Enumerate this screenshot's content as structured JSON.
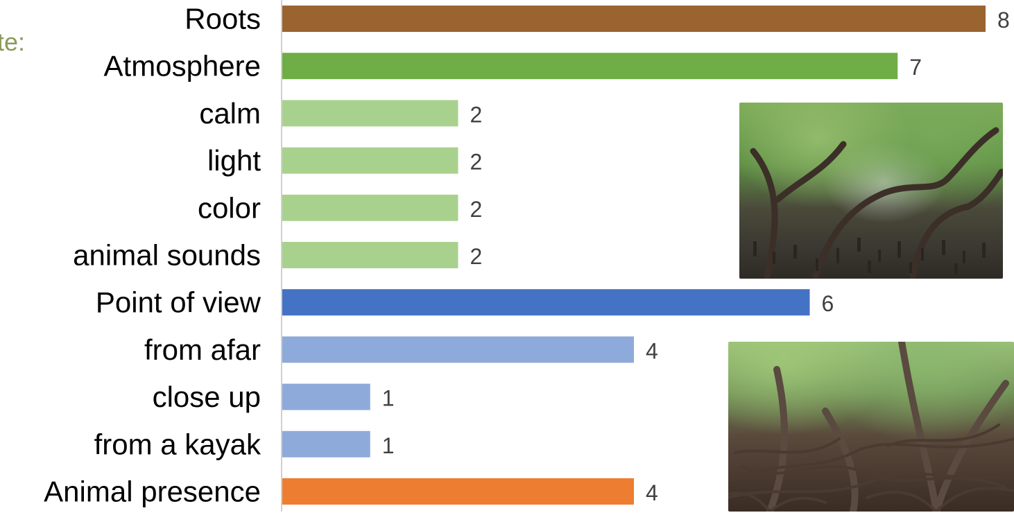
{
  "cut_label": "tte:",
  "chart_data": {
    "type": "bar",
    "orientation": "horizontal",
    "categories": [
      "Roots",
      "Atmosphere",
      "calm",
      "light",
      "color",
      "animal sounds",
      "Point of view",
      "from afar",
      "close up",
      "from a kayak",
      "Animal presence"
    ],
    "values": [
      8,
      7,
      2,
      2,
      2,
      2,
      6,
      4,
      1,
      1,
      4
    ],
    "colors": [
      "#9a6430",
      "#6fad46",
      "#a9d18e",
      "#a9d18e",
      "#a9d18e",
      "#a9d18e",
      "#4472c4",
      "#8eaadb",
      "#8eaadb",
      "#8eaadb",
      "#ed7d31"
    ],
    "xlim": [
      0,
      8
    ],
    "grid": false,
    "data_labels": true
  },
  "photos": [
    {
      "name": "mangrove-photo-1",
      "depicts": "mangrove-forest-icon"
    },
    {
      "name": "mangrove-photo-2",
      "depicts": "mangrove-roots-icon"
    }
  ]
}
